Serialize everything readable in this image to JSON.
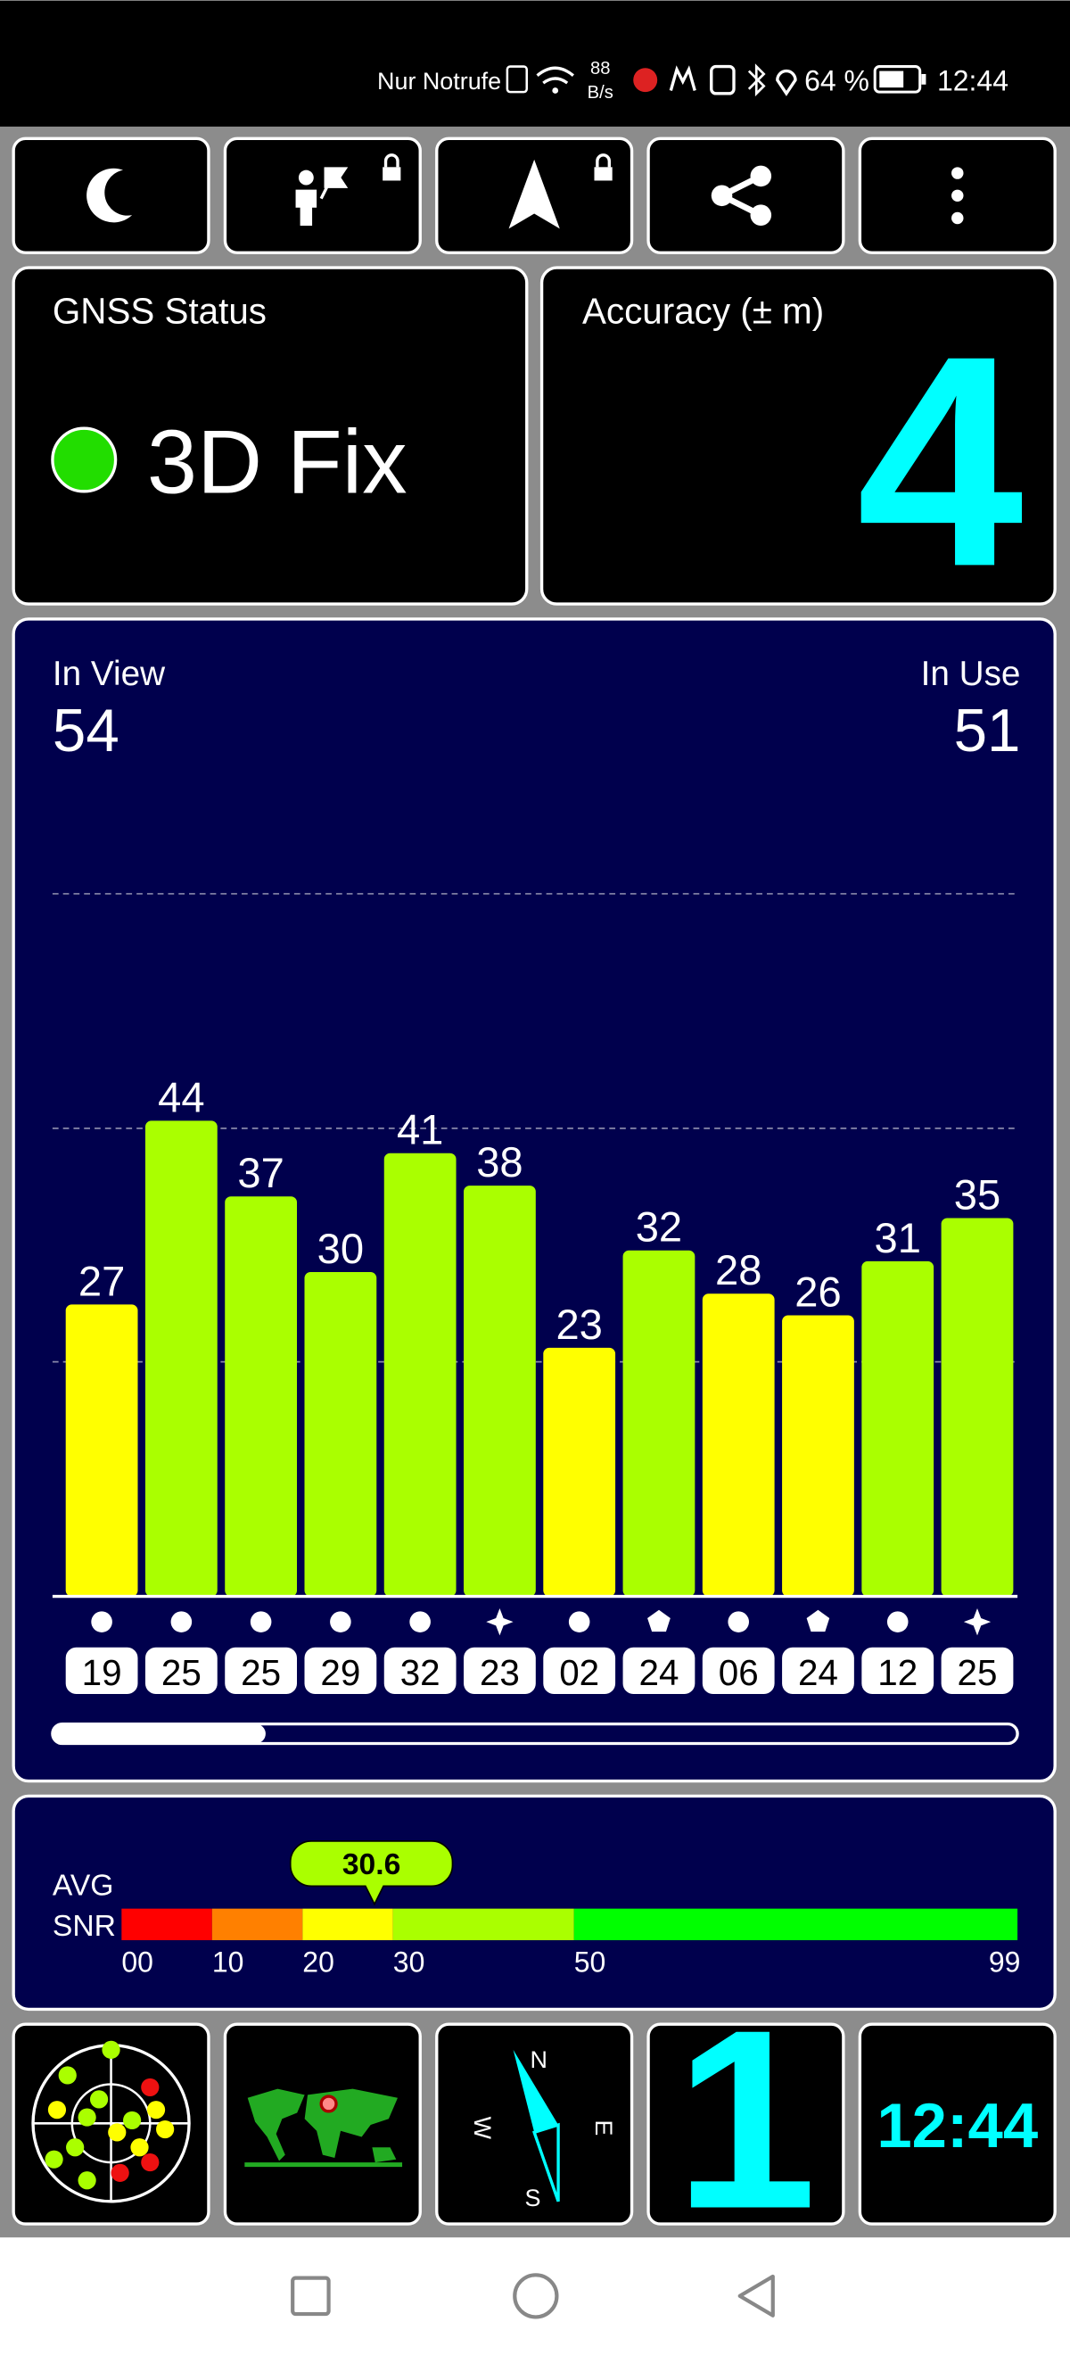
{
  "status_bar": {
    "carrier": "Nur Notrufe",
    "net_speed_value": "88",
    "net_speed_unit": "B/s",
    "battery": "64 %",
    "time": "12:44"
  },
  "gnss_status": {
    "title": "GNSS Status",
    "value": "3D Fix"
  },
  "accuracy": {
    "title": "Accuracy (± m)",
    "value": "4"
  },
  "chart_data": {
    "type": "bar",
    "in_view_label": "In View",
    "in_view": 54,
    "in_use_label": "In Use",
    "in_use": 51,
    "categories": [
      "19",
      "25",
      "25",
      "29",
      "32",
      "23",
      "02",
      "24",
      "06",
      "24",
      "12",
      "25"
    ],
    "values": [
      27,
      44,
      37,
      30,
      41,
      38,
      23,
      32,
      28,
      26,
      31,
      35
    ],
    "colors": [
      "#ffff00",
      "#aaff00",
      "#aaff00",
      "#aaff00",
      "#aaff00",
      "#aaff00",
      "#ffff00",
      "#aaff00",
      "#ffff00",
      "#ffff00",
      "#aaff00",
      "#aaff00"
    ],
    "markers": [
      "circle",
      "circle",
      "circle",
      "circle",
      "circle",
      "star",
      "circle",
      "pentagon",
      "circle",
      "pentagon",
      "circle",
      "star"
    ],
    "ylim": [
      0,
      65
    ],
    "yticks": [
      21.7,
      43.3,
      65
    ],
    "grid": true
  },
  "snr": {
    "label_top": "AVG",
    "label_bottom": "SNR",
    "value": 30.6,
    "xlim": [
      0,
      99
    ],
    "xticks": [
      {
        "value": 0,
        "label": "00"
      },
      10,
      20,
      30,
      50,
      99
    ],
    "band_colors": [
      "#ff0000",
      "#ff8000",
      "#ffff00",
      "#aaff00",
      "#00ff00"
    ]
  },
  "compass": {
    "north": "N",
    "east": "E",
    "south": "S",
    "west": "W"
  },
  "tiles": {
    "number": "1",
    "clock": "12:44"
  }
}
